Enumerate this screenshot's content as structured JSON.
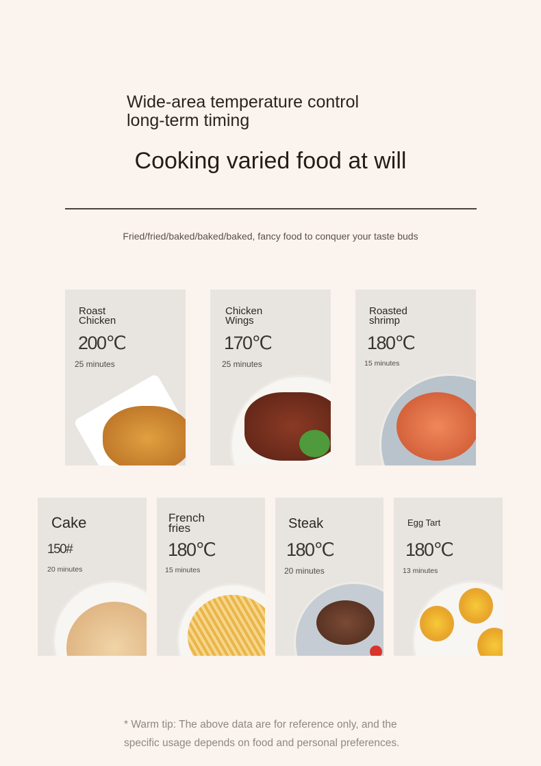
{
  "header": {
    "line1": "Wide-area temperature control",
    "line2": "long-term timing",
    "title": "Cooking varied food at will",
    "subtitle": "Fried/fried/baked/baked/baked, fancy food to conquer your taste buds"
  },
  "cards": [
    {
      "name": "Roast Chicken",
      "temp": "200℃",
      "time": "25 minutes"
    },
    {
      "name": "Chicken Wings",
      "temp": "170℃",
      "time": "25 minutes"
    },
    {
      "name": "Roasted shrimp",
      "temp": "180℃",
      "time": "15 minutes"
    },
    {
      "name": "Cake",
      "temp": "150#",
      "time": "20 minutes"
    },
    {
      "name": "French fries",
      "temp": "180℃",
      "time": "15 minutes"
    },
    {
      "name": "Steak",
      "temp": "180℃",
      "time": "20 minutes"
    },
    {
      "name": "Egg Tart",
      "temp": "180℃",
      "time": "13 minutes"
    }
  ],
  "footer": {
    "tip_line1": "* Warm tip: The above data are for reference only, and the",
    "tip_line2": "specific usage depends on food and personal preferences."
  }
}
